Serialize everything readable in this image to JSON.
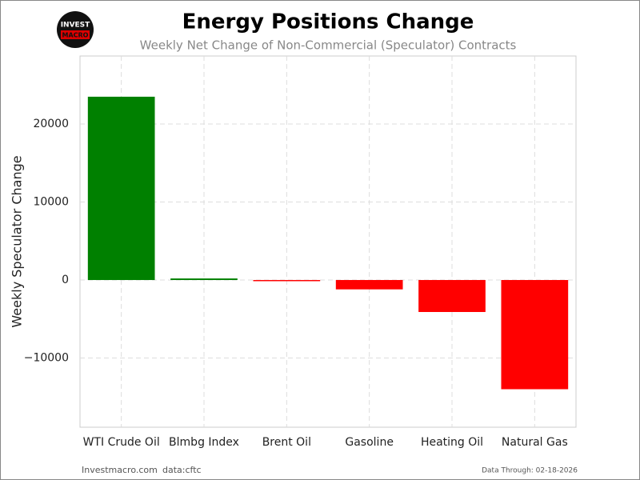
{
  "logo": {
    "top": "INVEST",
    "bottom": "MACRO"
  },
  "chart_data": {
    "type": "bar",
    "title": "Energy Positions Change",
    "subtitle": "Weekly Net Change of Non-Commercial (Speculator) Contracts",
    "y_label": "Weekly Speculator Change",
    "categories": [
      "WTI Crude Oil",
      "Blmbg Index",
      "Brent Oil",
      "Gasoline",
      "Heating Oil",
      "Natural Gas"
    ],
    "values": [
      23500,
      200,
      -150,
      -1200,
      -4100,
      -14000
    ],
    "colors": [
      "#008000",
      "#008000",
      "#ff0000",
      "#ff0000",
      "#ff0000",
      "#ff0000"
    ],
    "ylim": [
      -18870,
      28720
    ],
    "yticks": [
      {
        "value": -10000,
        "label": "−10000"
      },
      0,
      10000,
      20000
    ],
    "grid": true
  },
  "footer": {
    "site": "Investmacro.com",
    "source": "data:cftc",
    "date": "Data Through: 02-18-2026"
  }
}
